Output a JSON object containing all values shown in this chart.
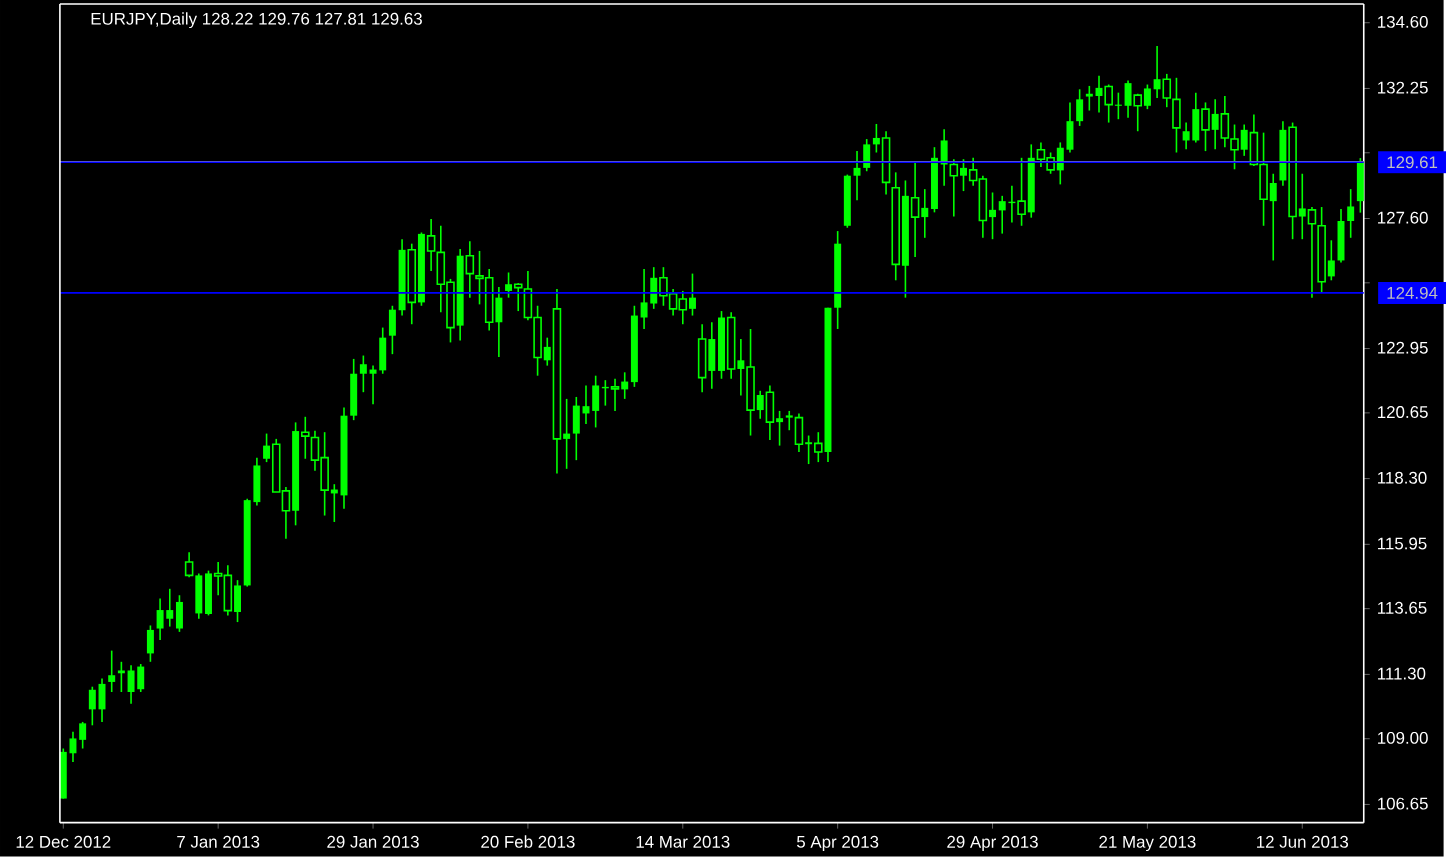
{
  "chart_data": {
    "type": "candlestick",
    "title": "EURJPY,Daily 128.22 129.76 127.81 129.63",
    "categories": [
      "12 Dec 2012",
      null,
      null,
      null,
      null,
      null,
      null,
      null,
      null,
      null,
      null,
      null,
      null,
      null,
      null,
      null,
      "7 Jan 2013",
      null,
      null,
      null,
      null,
      null,
      null,
      null,
      null,
      null,
      null,
      null,
      null,
      null,
      null,
      null,
      "29 Jan 2013",
      null,
      null,
      null,
      null,
      null,
      null,
      null,
      null,
      null,
      null,
      null,
      null,
      null,
      null,
      null,
      "20 Feb 2013",
      null,
      null,
      null,
      null,
      null,
      null,
      null,
      null,
      null,
      null,
      null,
      null,
      null,
      null,
      null,
      "14 Mar 2013",
      null,
      null,
      null,
      null,
      null,
      null,
      null,
      null,
      null,
      null,
      null,
      null,
      null,
      null,
      null,
      "5 Apr 2013",
      null,
      null,
      null,
      null,
      null,
      null,
      null,
      null,
      null,
      null,
      null,
      null,
      null,
      null,
      null,
      "29 Apr 2013",
      null,
      null,
      null,
      null,
      null,
      null,
      null,
      null,
      null,
      null,
      null,
      null,
      null,
      null,
      null,
      "21 May 2013",
      null,
      null,
      null,
      null,
      null,
      null,
      null,
      null,
      null,
      null,
      null,
      null,
      null,
      null,
      null,
      "12 Jun 2013",
      null,
      null,
      null,
      null,
      null,
      null
    ],
    "ohlc": [
      [
        106.86,
        108.65,
        106.86,
        108.53
      ],
      [
        108.48,
        109.25,
        108.17,
        109.01
      ],
      [
        108.96,
        109.6,
        108.65,
        109.55
      ],
      [
        110.05,
        110.86,
        109.48,
        110.75
      ],
      [
        110.05,
        111.15,
        109.6,
        110.96
      ],
      [
        111.03,
        112.15,
        110.67,
        111.27
      ],
      [
        111.34,
        111.75,
        110.67,
        111.44
      ],
      [
        110.67,
        111.63,
        110.25,
        111.44
      ],
      [
        110.77,
        111.67,
        110.67,
        111.58
      ],
      [
        112.05,
        113.05,
        111.75,
        112.89
      ],
      [
        112.94,
        114.01,
        112.53,
        113.6
      ],
      [
        113.29,
        114.36,
        113.01,
        113.6
      ],
      [
        112.94,
        114.13,
        112.82,
        113.89
      ],
      [
        115.32,
        115.67,
        114.77,
        114.84
      ],
      [
        113.48,
        114.91,
        113.29,
        114.84
      ],
      [
        113.46,
        115.01,
        113.41,
        114.91
      ],
      [
        114.91,
        115.32,
        114.13,
        114.82
      ],
      [
        114.84,
        115.2,
        113.41,
        113.58
      ],
      [
        113.53,
        114.67,
        113.17,
        114.48
      ],
      [
        114.48,
        117.58,
        114.44,
        117.53
      ],
      [
        117.46,
        119.05,
        117.34,
        118.77
      ],
      [
        119.01,
        119.91,
        118.89,
        119.48
      ],
      [
        119.53,
        119.72,
        117.82,
        117.82
      ],
      [
        117.86,
        118.0,
        116.15,
        117.15
      ],
      [
        117.15,
        120.31,
        116.63,
        120.0
      ],
      [
        119.96,
        120.51,
        119.01,
        119.82
      ],
      [
        119.77,
        120.01,
        118.58,
        118.96
      ],
      [
        119.05,
        119.96,
        116.98,
        117.89
      ],
      [
        117.77,
        118.1,
        116.75,
        117.91
      ],
      [
        117.7,
        120.84,
        117.22,
        120.55
      ],
      [
        120.55,
        122.58,
        120.39,
        122.05
      ],
      [
        122.05,
        122.7,
        121.39,
        122.39
      ],
      [
        122.05,
        122.34,
        120.96,
        122.2
      ],
      [
        122.17,
        123.7,
        122.05,
        123.34
      ],
      [
        123.41,
        124.48,
        122.75,
        124.34
      ],
      [
        124.32,
        126.86,
        124.13,
        126.48
      ],
      [
        126.48,
        126.7,
        123.82,
        124.6
      ],
      [
        124.6,
        127.1,
        124.48,
        127.05
      ],
      [
        126.98,
        127.58,
        125.72,
        126.44
      ],
      [
        126.39,
        127.34,
        124.25,
        125.25
      ],
      [
        125.32,
        125.44,
        123.17,
        123.7
      ],
      [
        123.77,
        126.51,
        123.24,
        126.27
      ],
      [
        126.27,
        126.79,
        124.77,
        125.63
      ],
      [
        125.55,
        126.44,
        124.53,
        125.46
      ],
      [
        125.48,
        125.79,
        123.6,
        123.89
      ],
      [
        123.89,
        125.15,
        122.65,
        124.77
      ],
      [
        125.01,
        125.67,
        124.77,
        125.25
      ],
      [
        125.25,
        125.29,
        124.29,
        125.13
      ],
      [
        125.08,
        125.72,
        123.96,
        124.06
      ],
      [
        124.06,
        124.48,
        121.98,
        122.63
      ],
      [
        122.53,
        123.34,
        122.34,
        123.01
      ],
      [
        124.37,
        125.08,
        118.48,
        119.72
      ],
      [
        119.72,
        121.15,
        118.65,
        119.91
      ],
      [
        119.91,
        121.22,
        118.96,
        120.91
      ],
      [
        120.63,
        121.63,
        120.25,
        120.89
      ],
      [
        120.72,
        121.98,
        120.13,
        121.63
      ],
      [
        121.53,
        121.82,
        120.91,
        121.58
      ],
      [
        121.58,
        121.87,
        120.72,
        121.51
      ],
      [
        121.49,
        122.1,
        121.15,
        121.77
      ],
      [
        121.75,
        124.48,
        121.58,
        124.13
      ],
      [
        124.06,
        125.79,
        123.65,
        124.6
      ],
      [
        124.56,
        125.86,
        124.37,
        125.48
      ],
      [
        125.48,
        125.86,
        124.48,
        124.84
      ],
      [
        124.91,
        125.08,
        124.13,
        124.37
      ],
      [
        124.72,
        125.01,
        123.82,
        124.34
      ],
      [
        124.37,
        125.63,
        124.13,
        124.77
      ],
      [
        123.29,
        123.82,
        121.39,
        121.91
      ],
      [
        122.15,
        123.89,
        121.51,
        123.29
      ],
      [
        122.15,
        124.29,
        121.87,
        124.06
      ],
      [
        124.06,
        124.25,
        121.87,
        122.22
      ],
      [
        122.22,
        123.29,
        121.27,
        122.53
      ],
      [
        122.29,
        123.65,
        119.84,
        120.75
      ],
      [
        120.75,
        121.44,
        120.44,
        121.29
      ],
      [
        121.39,
        121.63,
        119.68,
        120.32
      ],
      [
        120.32,
        120.72,
        119.48,
        120.46
      ],
      [
        120.48,
        120.72,
        120.03,
        120.56
      ],
      [
        120.48,
        120.63,
        119.25,
        119.53
      ],
      [
        119.53,
        119.84,
        118.82,
        119.6
      ],
      [
        119.56,
        119.96,
        118.89,
        119.25
      ],
      [
        119.25,
        124.41,
        118.89,
        124.41
      ],
      [
        124.41,
        127.15,
        123.65,
        126.7
      ],
      [
        127.34,
        129.17,
        127.27,
        129.13
      ],
      [
        129.13,
        130.01,
        128.25,
        129.41
      ],
      [
        129.41,
        130.44,
        129.29,
        130.25
      ],
      [
        130.25,
        130.98,
        129.96,
        130.48
      ],
      [
        130.48,
        130.72,
        128.46,
        128.89
      ],
      [
        128.7,
        129.25,
        125.39,
        125.96
      ],
      [
        125.91,
        128.96,
        124.77,
        128.41
      ],
      [
        128.34,
        129.65,
        126.22,
        127.65
      ],
      [
        127.65,
        128.65,
        126.91,
        127.98
      ],
      [
        127.94,
        130.15,
        127.82,
        129.77
      ],
      [
        129.53,
        130.79,
        128.77,
        130.39
      ],
      [
        129.53,
        129.72,
        127.67,
        129.13
      ],
      [
        129.13,
        129.72,
        128.58,
        129.41
      ],
      [
        129.34,
        129.77,
        128.77,
        128.96
      ],
      [
        129.01,
        129.13,
        126.91,
        127.53
      ],
      [
        127.65,
        128.53,
        126.86,
        127.91
      ],
      [
        127.89,
        128.41,
        127.06,
        128.22
      ],
      [
        128.15,
        128.77,
        127.46,
        128.2
      ],
      [
        128.22,
        129.77,
        127.34,
        127.75
      ],
      [
        127.82,
        130.25,
        127.63,
        129.77
      ],
      [
        130.06,
        130.32,
        129.44,
        129.72
      ],
      [
        129.77,
        129.96,
        129.2,
        129.34
      ],
      [
        129.32,
        130.32,
        128.82,
        130.13
      ],
      [
        130.06,
        131.75,
        129.96,
        131.08
      ],
      [
        131.08,
        132.22,
        130.91,
        131.86
      ],
      [
        131.96,
        132.34,
        131.46,
        132.06
      ],
      [
        131.98,
        132.7,
        131.39,
        132.27
      ],
      [
        132.32,
        132.39,
        131.03,
        131.67
      ],
      [
        131.63,
        132.1,
        131.15,
        131.67
      ],
      [
        131.63,
        132.53,
        131.2,
        132.44
      ],
      [
        132.01,
        132.06,
        130.72,
        131.63
      ],
      [
        131.63,
        132.39,
        131.51,
        132.25
      ],
      [
        132.22,
        133.77,
        131.91,
        132.58
      ],
      [
        132.58,
        132.77,
        131.58,
        131.91
      ],
      [
        131.86,
        132.63,
        129.96,
        130.84
      ],
      [
        130.39,
        131.03,
        130.08,
        130.72
      ],
      [
        130.39,
        132.1,
        130.32,
        131.51
      ],
      [
        131.51,
        131.75,
        130.01,
        130.77
      ],
      [
        130.77,
        131.86,
        130.08,
        131.34
      ],
      [
        131.34,
        131.98,
        130.15,
        130.48
      ],
      [
        130.44,
        130.96,
        129.36,
        130.06
      ],
      [
        130.06,
        130.96,
        129.84,
        130.77
      ],
      [
        130.67,
        131.32,
        129.48,
        129.53
      ],
      [
        129.53,
        130.67,
        127.34,
        128.29
      ],
      [
        128.22,
        129.2,
        126.1,
        128.87
      ],
      [
        128.96,
        131.08,
        128.77,
        130.77
      ],
      [
        130.86,
        131.03,
        126.86,
        127.67
      ],
      [
        127.67,
        129.2,
        126.86,
        127.96
      ],
      [
        127.91,
        128.01,
        124.77,
        127.41
      ],
      [
        127.34,
        128.01,
        124.96,
        125.34
      ],
      [
        125.53,
        126.82,
        125.39,
        126.1
      ],
      [
        126.1,
        127.94,
        126.03,
        127.51
      ],
      [
        127.51,
        128.65,
        126.91,
        128.03
      ],
      [
        128.22,
        129.76,
        127.81,
        129.63
      ]
    ],
    "color": "#00ff00",
    "ylim": [
      106.0,
      135.27
    ],
    "yticks": [
      {
        "value": 134.6,
        "label": "134.60"
      },
      132.25,
      {
        "value": 129.95,
        "label": null
      },
      {
        "value": 127.6,
        "label": "127.60"
      },
      {
        "value": 125.3,
        "label": null
      },
      122.95,
      120.65,
      {
        "value": 118.3,
        "label": "118.30"
      },
      115.95,
      113.65,
      {
        "value": 111.3,
        "label": "111.30"
      },
      {
        "value": 109.0,
        "label": "109.00"
      },
      106.65
    ],
    "ref_lines": [
      {
        "axis": "y",
        "value": 129.63,
        "color": "#a0a0a0"
      },
      {
        "axis": "y",
        "value": 129.61,
        "label": "129.61",
        "color": "#0000ff"
      },
      {
        "axis": "y",
        "value": 124.94,
        "label": "124.94",
        "color": "#0000ff"
      }
    ],
    "grid": false
  }
}
